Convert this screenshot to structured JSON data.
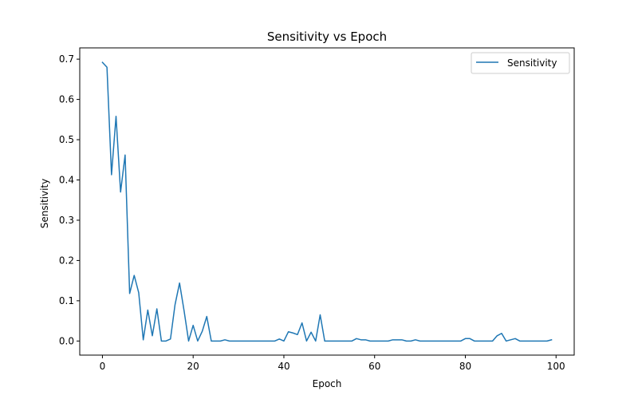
{
  "chart_data": {
    "type": "line",
    "title": "Sensitivity vs Epoch",
    "xlabel": "Epoch",
    "ylabel": "Sensitivity",
    "xlim": [
      -5,
      104
    ],
    "ylim": [
      -0.035,
      0.728
    ],
    "xticks": [
      0,
      20,
      40,
      60,
      80,
      100
    ],
    "xtick_labels": [
      "0",
      "20",
      "40",
      "60",
      "80",
      "100"
    ],
    "yticks": [
      0.0,
      0.1,
      0.2,
      0.3,
      0.4,
      0.5,
      0.6,
      0.7
    ],
    "ytick_labels": [
      "0.0",
      "0.1",
      "0.2",
      "0.3",
      "0.4",
      "0.5",
      "0.6",
      "0.7"
    ],
    "grid": false,
    "legend_position": "top-right",
    "series": [
      {
        "name": "Sensitivity",
        "color": "#1f77b4",
        "x": [
          0,
          1,
          2,
          3,
          4,
          5,
          6,
          7,
          8,
          9,
          10,
          11,
          12,
          13,
          14,
          15,
          16,
          17,
          18,
          19,
          20,
          21,
          22,
          23,
          24,
          25,
          26,
          27,
          28,
          29,
          30,
          31,
          32,
          33,
          34,
          35,
          36,
          37,
          38,
          39,
          40,
          41,
          42,
          43,
          44,
          45,
          46,
          47,
          48,
          49,
          50,
          51,
          52,
          53,
          54,
          55,
          56,
          57,
          58,
          59,
          60,
          61,
          62,
          63,
          64,
          65,
          66,
          67,
          68,
          69,
          70,
          71,
          72,
          73,
          74,
          75,
          76,
          77,
          78,
          79,
          80,
          81,
          82,
          83,
          84,
          85,
          86,
          87,
          88,
          89,
          90,
          91,
          92,
          93,
          94,
          95,
          96,
          97,
          98,
          99
        ],
        "values": [
          0.692,
          0.68,
          0.413,
          0.558,
          0.37,
          0.462,
          0.118,
          0.163,
          0.12,
          0.003,
          0.077,
          0.013,
          0.08,
          0.0,
          0.0,
          0.005,
          0.09,
          0.144,
          0.075,
          0.0,
          0.039,
          0.0,
          0.024,
          0.061,
          0.0,
          0.0,
          0.0,
          0.003,
          0.0,
          0.0,
          0.0,
          0.0,
          0.0,
          0.0,
          0.0,
          0.0,
          0.0,
          0.0,
          0.0,
          0.005,
          0.0,
          0.023,
          0.02,
          0.016,
          0.045,
          0.0,
          0.022,
          0.0,
          0.065,
          0.0,
          0.0,
          0.0,
          0.0,
          0.0,
          0.0,
          0.0,
          0.006,
          0.003,
          0.003,
          0.0,
          0.0,
          0.0,
          0.0,
          0.0,
          0.003,
          0.003,
          0.003,
          0.0,
          0.0,
          0.003,
          0.0,
          0.0,
          0.0,
          0.0,
          0.0,
          0.0,
          0.0,
          0.0,
          0.0,
          0.0,
          0.006,
          0.006,
          0.0,
          0.0,
          0.0,
          0.0,
          0.0,
          0.013,
          0.019,
          0.0,
          0.003,
          0.006,
          0.0,
          0.0,
          0.0,
          0.0,
          0.0,
          0.0,
          0.0,
          0.003
        ]
      }
    ]
  }
}
